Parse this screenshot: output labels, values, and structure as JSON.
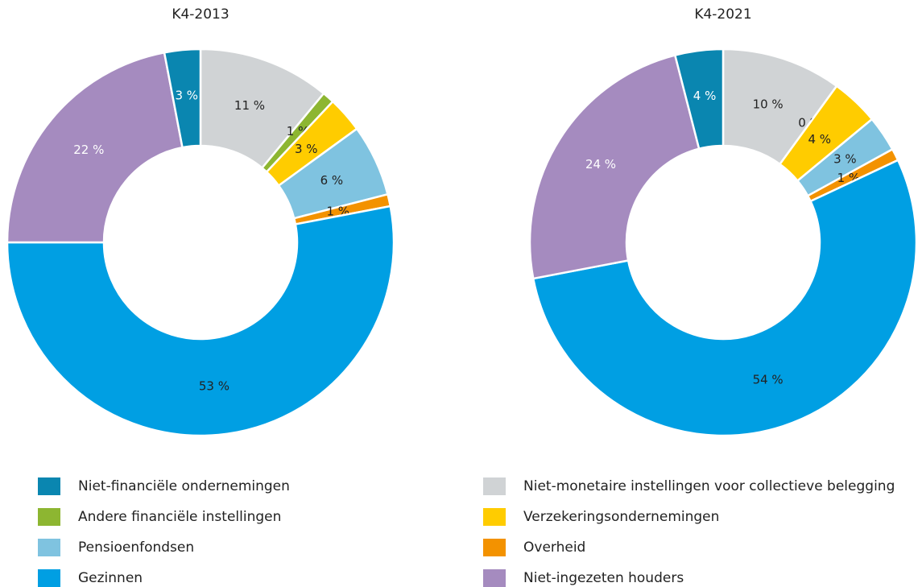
{
  "chart_data": [
    {
      "type": "pie",
      "title": "K4-2013",
      "categories": [
        "Niet-monetaire instellingen voor collectieve belegging",
        "Andere financiële instellingen",
        "Verzekeringsondernemingen",
        "Pensioenfondsen",
        "Overheid",
        "Gezinnen",
        "Niet-ingezeten houders",
        "Niet-financiële ondernemingen"
      ],
      "colors": [
        "#d0d3d5",
        "#8db631",
        "#ffcc00",
        "#7fc3e0",
        "#f39200",
        "#009fe3",
        "#a58bbf",
        "#0a86b0"
      ],
      "values": [
        11,
        1,
        3,
        6,
        1,
        53,
        22,
        3
      ],
      "value_labels": [
        "11 %",
        "1 %",
        "3 %",
        "6 %",
        "1 %",
        "53 %",
        "22 %",
        "3 %"
      ]
    },
    {
      "type": "pie",
      "title": "K4-2021",
      "values": [
        10,
        0,
        4,
        3,
        1,
        54,
        24,
        4
      ],
      "value_labels": [
        "10 %",
        "0 %",
        "4 %",
        "3 %",
        "1 %",
        "54 %",
        "24 %",
        "4 %"
      ]
    }
  ]
}
